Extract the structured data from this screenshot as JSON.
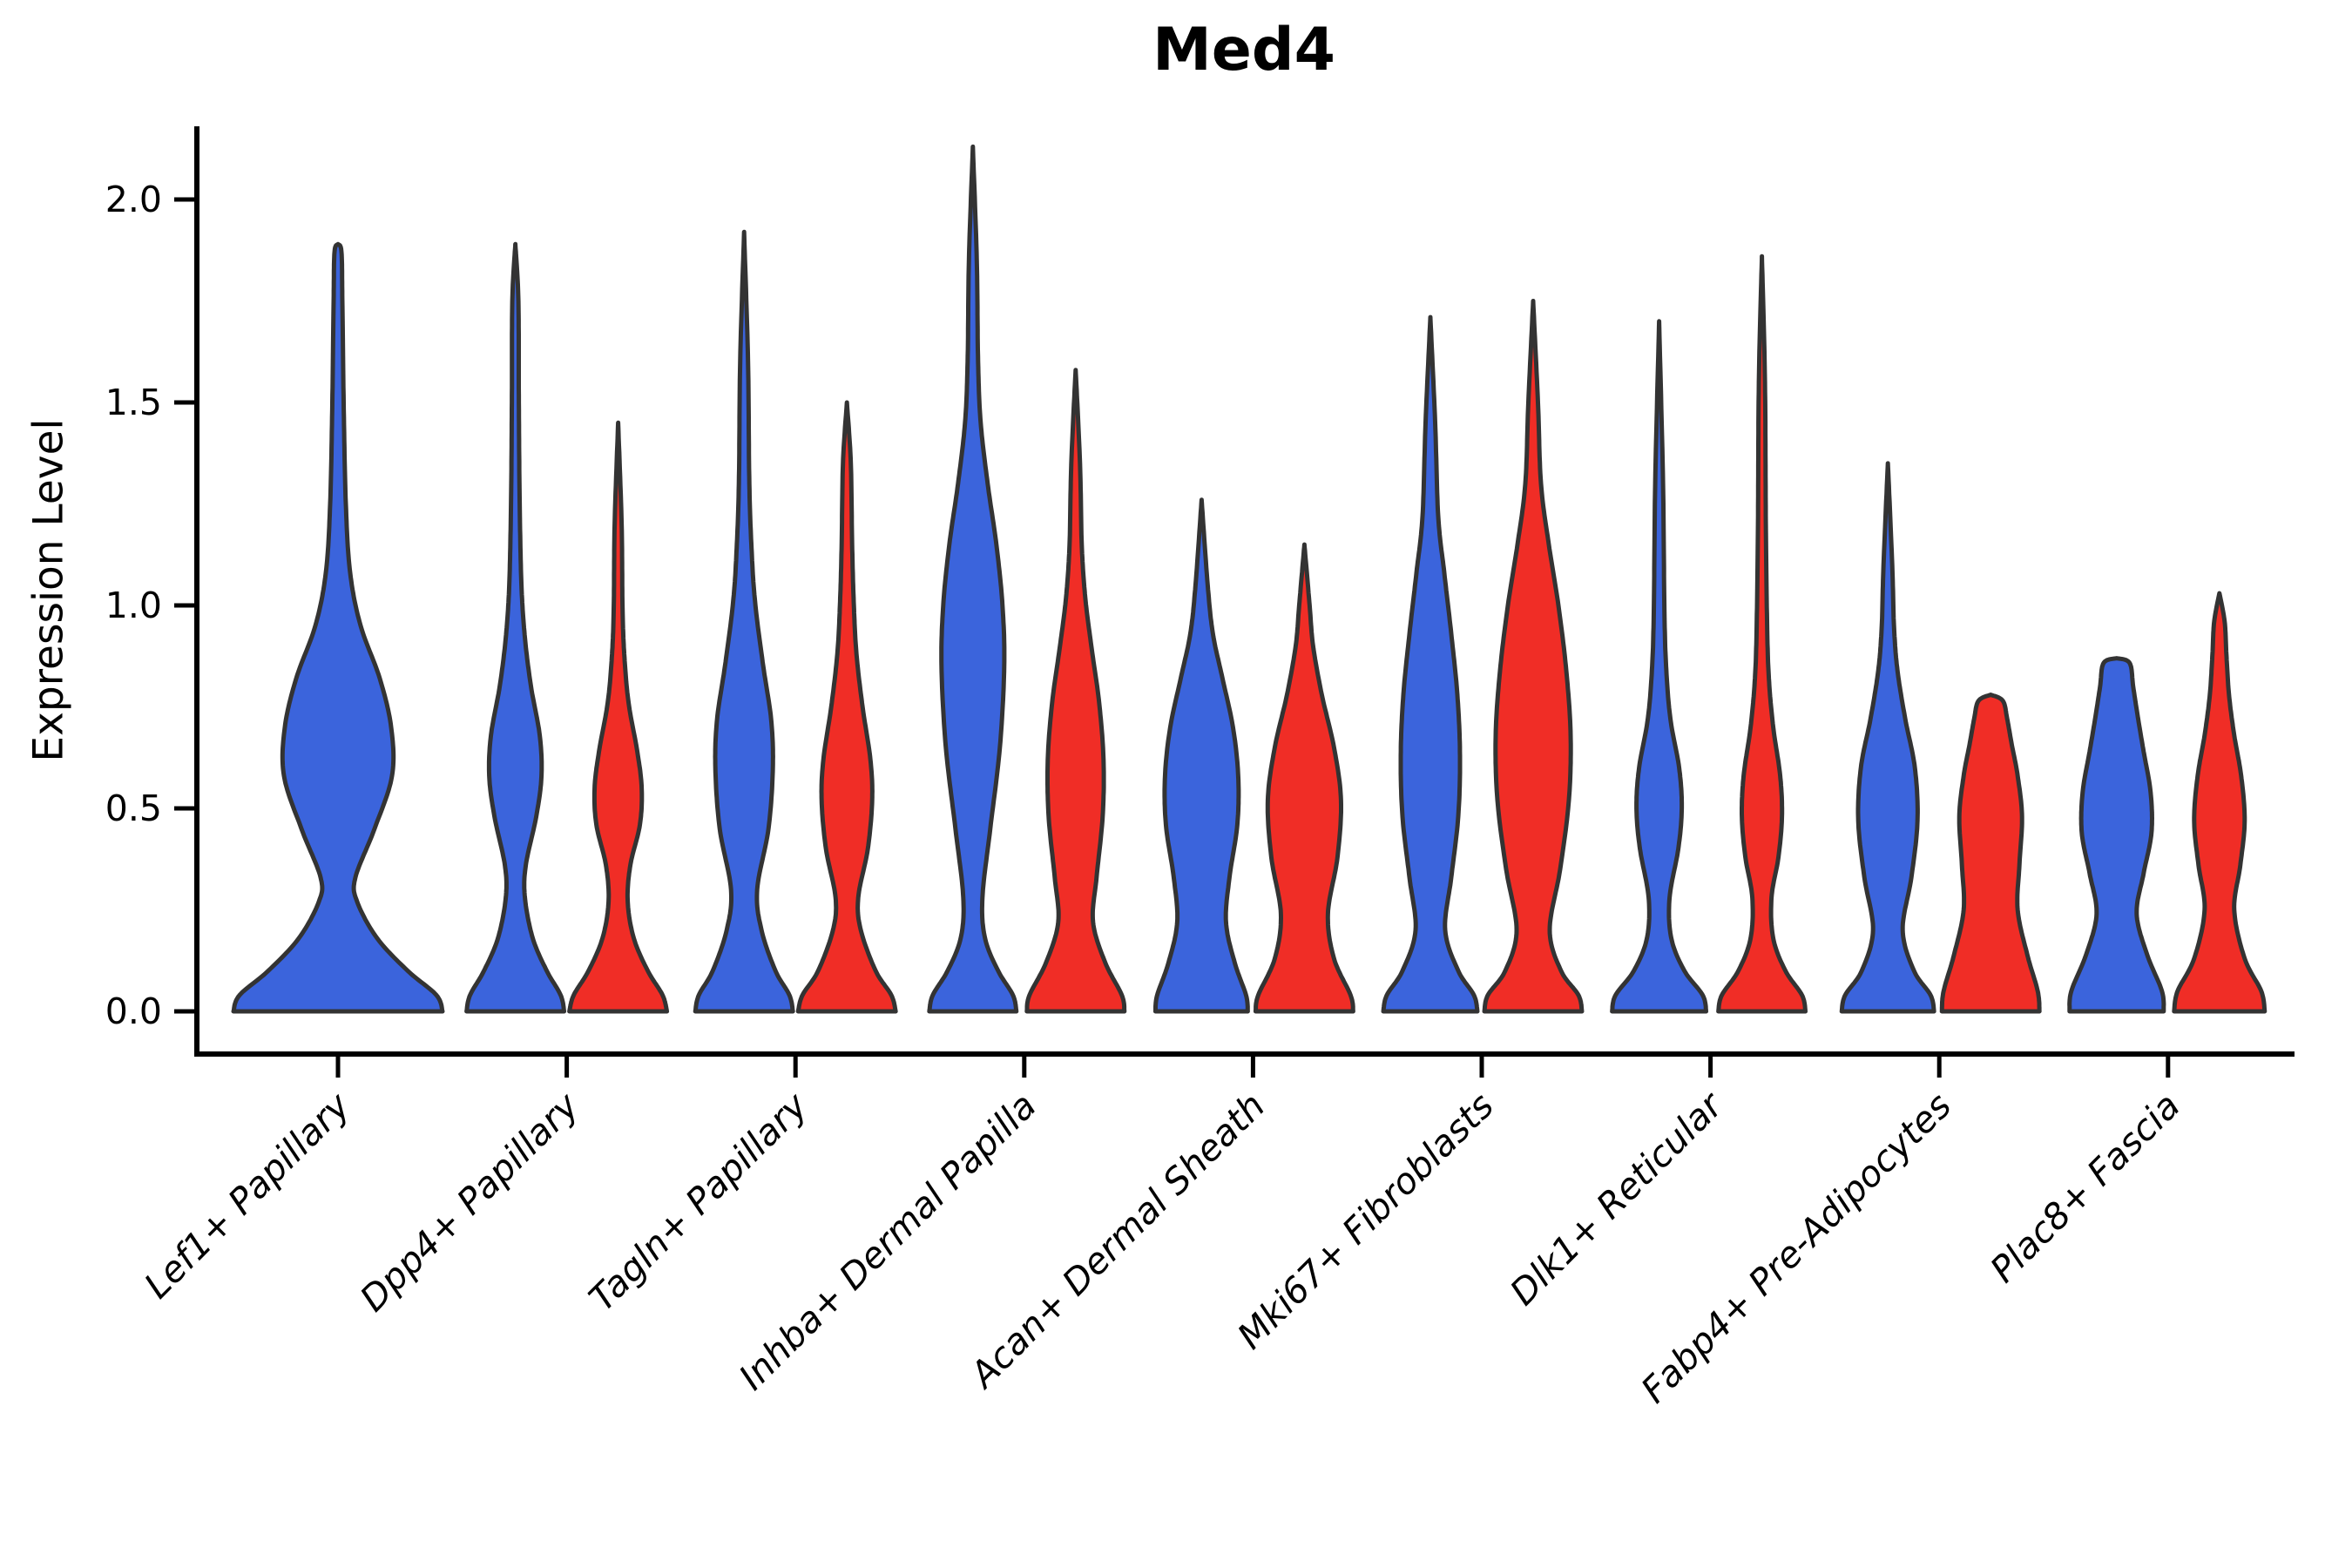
{
  "title": "Med4",
  "axes": {
    "ylabel": "Expression Level",
    "ytick_labels": [
      "0.0",
      "0.5",
      "1.0",
      "1.5",
      "2.0"
    ]
  },
  "colors": {
    "blue_fill": "#3B64DC",
    "red_fill": "#F02D26",
    "violin_outline": "#333333",
    "axis": "#000000",
    "background": "#FFFFFF"
  },
  "chart_data": {
    "type": "violin",
    "title": "Med4",
    "ylabel": "Expression Level",
    "xlabel": "",
    "ylim": [
      0,
      2.25
    ],
    "yticks": [
      0.0,
      0.5,
      1.0,
      1.5,
      2.0
    ],
    "grid": false,
    "legend": "none",
    "orientation": "vertical",
    "hue_colors": {
      "blue": "#3B64DC",
      "red": "#F02D26"
    },
    "categories": [
      "Lef1+ Papillary",
      "Dpp4+ Papillary",
      "Tagln+ Papillary",
      "Inhba+ Dermal Papilla",
      "Acan+ Dermal Sheath",
      "Mki67+ Fibroblasts",
      "Dlk1+ Reticular",
      "Fabp4+ Pre-Adipocytes",
      "Plac8+ Fascia"
    ],
    "series": [
      {
        "name": "blue",
        "color": "#3B64DC",
        "max_expression": [
          1.89,
          1.89,
          1.92,
          2.13,
          1.26,
          1.71,
          1.7,
          1.35,
          0.87
        ]
      },
      {
        "name": "red",
        "color": "#F02D26",
        "max_expression": [
          null,
          1.45,
          1.5,
          1.58,
          1.15,
          1.75,
          1.86,
          0.78,
          1.03
        ]
      }
    ],
    "violins": [
      {
        "category": "Lef1+ Papillary",
        "blue": {
          "max": 1.89,
          "profile": [
            [
              0,
              120
            ],
            [
              0.04,
              113
            ],
            [
              0.1,
              80
            ],
            [
              0.18,
              45
            ],
            [
              0.27,
              22
            ],
            [
              0.33,
              20
            ],
            [
              0.45,
              42
            ],
            [
              0.58,
              62
            ],
            [
              0.7,
              61
            ],
            [
              0.82,
              48
            ],
            [
              0.95,
              26
            ],
            [
              1.08,
              14
            ],
            [
              1.25,
              9
            ],
            [
              1.5,
              6.5
            ],
            [
              1.75,
              5
            ],
            [
              1.87,
              4
            ],
            [
              1.89,
              0
            ]
          ]
        },
        "red": null
      },
      {
        "category": "Dpp4+ Papillary",
        "blue": {
          "max": 1.89,
          "profile": [
            [
              0,
              56
            ],
            [
              0.04,
              52
            ],
            [
              0.1,
              36
            ],
            [
              0.18,
              20
            ],
            [
              0.28,
              11
            ],
            [
              0.36,
              12
            ],
            [
              0.48,
              24
            ],
            [
              0.58,
              30
            ],
            [
              0.68,
              28
            ],
            [
              0.8,
              18
            ],
            [
              0.92,
              11
            ],
            [
              1.05,
              7
            ],
            [
              1.25,
              5
            ],
            [
              1.5,
              4
            ],
            [
              1.75,
              3.5
            ],
            [
              1.89,
              0
            ]
          ]
        },
        "red": {
          "max": 1.45,
          "profile": [
            [
              0,
              56
            ],
            [
              0.04,
              51
            ],
            [
              0.1,
              34
            ],
            [
              0.18,
              18
            ],
            [
              0.27,
              11
            ],
            [
              0.36,
              14
            ],
            [
              0.46,
              25
            ],
            [
              0.55,
              27
            ],
            [
              0.64,
              22
            ],
            [
              0.76,
              12
            ],
            [
              0.88,
              7
            ],
            [
              1.0,
              5
            ],
            [
              1.2,
              4
            ],
            [
              1.45,
              0
            ]
          ]
        }
      },
      {
        "category": "Tagln+ Papillary",
        "blue": {
          "max": 1.92,
          "profile": [
            [
              0,
              56
            ],
            [
              0.04,
              52
            ],
            [
              0.1,
              36
            ],
            [
              0.2,
              20
            ],
            [
              0.3,
              15
            ],
            [
              0.45,
              28
            ],
            [
              0.6,
              33
            ],
            [
              0.72,
              31
            ],
            [
              0.85,
              22
            ],
            [
              1.0,
              13
            ],
            [
              1.12,
              9
            ],
            [
              1.3,
              6
            ],
            [
              1.6,
              4.5
            ],
            [
              1.92,
              0
            ]
          ]
        },
        "red": {
          "max": 1.5,
          "profile": [
            [
              0,
              56
            ],
            [
              0.04,
              51
            ],
            [
              0.1,
              33
            ],
            [
              0.2,
              16
            ],
            [
              0.28,
              13
            ],
            [
              0.4,
              24
            ],
            [
              0.52,
              29
            ],
            [
              0.62,
              27
            ],
            [
              0.75,
              18
            ],
            [
              0.88,
              11
            ],
            [
              1.0,
              8
            ],
            [
              1.15,
              6
            ],
            [
              1.35,
              4.5
            ],
            [
              1.5,
              0
            ]
          ]
        }
      },
      {
        "category": "Inhba+ Dermal Papilla",
        "blue": {
          "max": 2.13,
          "profile": [
            [
              0,
              50
            ],
            [
              0.04,
              46
            ],
            [
              0.1,
              29
            ],
            [
              0.18,
              14
            ],
            [
              0.28,
              11
            ],
            [
              0.45,
              20
            ],
            [
              0.65,
              31
            ],
            [
              0.85,
              36
            ],
            [
              1.0,
              34
            ],
            [
              1.15,
              27
            ],
            [
              1.3,
              17
            ],
            [
              1.45,
              9
            ],
            [
              1.6,
              6
            ],
            [
              1.85,
              4.5
            ],
            [
              2.13,
              0
            ]
          ]
        },
        "red": {
          "max": 1.58,
          "profile": [
            [
              0,
              56
            ],
            [
              0.04,
              53
            ],
            [
              0.12,
              34
            ],
            [
              0.22,
              20
            ],
            [
              0.33,
              24
            ],
            [
              0.48,
              31
            ],
            [
              0.62,
              32
            ],
            [
              0.76,
              27
            ],
            [
              0.9,
              18
            ],
            [
              1.02,
              11
            ],
            [
              1.15,
              7
            ],
            [
              1.35,
              5
            ],
            [
              1.58,
              0
            ]
          ]
        }
      },
      {
        "category": "Acan+ Dermal Sheath",
        "blue": {
          "max": 1.26,
          "profile": [
            [
              0,
              53
            ],
            [
              0.04,
              51
            ],
            [
              0.12,
              38
            ],
            [
              0.22,
              28
            ],
            [
              0.33,
              32
            ],
            [
              0.46,
              41
            ],
            [
              0.58,
              42
            ],
            [
              0.7,
              36
            ],
            [
              0.82,
              24
            ],
            [
              0.93,
              13
            ],
            [
              1.05,
              7
            ],
            [
              1.26,
              0
            ]
          ]
        },
        "red": {
          "max": 1.15,
          "profile": [
            [
              0,
              56
            ],
            [
              0.04,
              53
            ],
            [
              0.13,
              34
            ],
            [
              0.24,
              27
            ],
            [
              0.38,
              38
            ],
            [
              0.52,
              42
            ],
            [
              0.65,
              34
            ],
            [
              0.78,
              20
            ],
            [
              0.9,
              10
            ],
            [
              1.0,
              6
            ],
            [
              1.15,
              0
            ]
          ]
        }
      },
      {
        "category": "Mki67+ Fibroblasts",
        "blue": {
          "max": 1.71,
          "profile": [
            [
              0,
              54
            ],
            [
              0.04,
              50
            ],
            [
              0.1,
              32
            ],
            [
              0.2,
              17
            ],
            [
              0.33,
              24
            ],
            [
              0.48,
              32
            ],
            [
              0.63,
              34
            ],
            [
              0.78,
              31
            ],
            [
              0.93,
              24
            ],
            [
              1.08,
              16
            ],
            [
              1.22,
              9
            ],
            [
              1.45,
              5.5
            ],
            [
              1.71,
              0
            ]
          ]
        },
        "red": {
          "max": 1.75,
          "profile": [
            [
              0,
              56
            ],
            [
              0.04,
              52
            ],
            [
              0.1,
              32
            ],
            [
              0.2,
              19
            ],
            [
              0.35,
              31
            ],
            [
              0.52,
              41
            ],
            [
              0.68,
              43
            ],
            [
              0.84,
              38
            ],
            [
              1.0,
              29
            ],
            [
              1.15,
              18
            ],
            [
              1.3,
              9
            ],
            [
              1.5,
              5.5
            ],
            [
              1.75,
              0
            ]
          ]
        }
      },
      {
        "category": "Dlk1+ Reticular",
        "blue": {
          "max": 1.7,
          "profile": [
            [
              0,
              54
            ],
            [
              0.04,
              50
            ],
            [
              0.1,
              29
            ],
            [
              0.18,
              14
            ],
            [
              0.28,
              12
            ],
            [
              0.4,
              22
            ],
            [
              0.5,
              26
            ],
            [
              0.6,
              23
            ],
            [
              0.72,
              13
            ],
            [
              0.85,
              8
            ],
            [
              1.0,
              6
            ],
            [
              1.3,
              4.5
            ],
            [
              1.7,
              0
            ]
          ]
        },
        "red": {
          "max": 1.86,
          "profile": [
            [
              0,
              50
            ],
            [
              0.04,
              46
            ],
            [
              0.1,
              27
            ],
            [
              0.18,
              13
            ],
            [
              0.28,
              11
            ],
            [
              0.38,
              19
            ],
            [
              0.48,
              23
            ],
            [
              0.58,
              21
            ],
            [
              0.7,
              13
            ],
            [
              0.82,
              8
            ],
            [
              0.95,
              6
            ],
            [
              1.2,
              4.5
            ],
            [
              1.55,
              3.5
            ],
            [
              1.86,
              0
            ]
          ]
        }
      },
      {
        "category": "Fabp4+ Pre-Adipocytes",
        "blue": {
          "max": 1.35,
          "profile": [
            [
              0,
              53
            ],
            [
              0.04,
              49
            ],
            [
              0.1,
              30
            ],
            [
              0.2,
              17
            ],
            [
              0.33,
              27
            ],
            [
              0.47,
              34
            ],
            [
              0.6,
              31
            ],
            [
              0.72,
              20
            ],
            [
              0.84,
              11
            ],
            [
              0.95,
              7
            ],
            [
              1.1,
              5
            ],
            [
              1.35,
              0
            ]
          ]
        },
        "red": {
          "max": 0.78,
          "profile": [
            [
              0,
              56
            ],
            [
              0.05,
              54
            ],
            [
              0.14,
              42
            ],
            [
              0.25,
              31
            ],
            [
              0.36,
              33
            ],
            [
              0.48,
              36
            ],
            [
              0.58,
              31
            ],
            [
              0.66,
              24
            ],
            [
              0.72,
              19
            ],
            [
              0.765,
              14
            ],
            [
              0.78,
              0
            ]
          ]
        }
      },
      {
        "category": "Plac8+ Fascia",
        "blue": {
          "max": 0.87,
          "profile": [
            [
              0,
              54
            ],
            [
              0.05,
              52
            ],
            [
              0.14,
              35
            ],
            [
              0.24,
              23
            ],
            [
              0.34,
              31
            ],
            [
              0.44,
              40
            ],
            [
              0.54,
              39
            ],
            [
              0.64,
              31
            ],
            [
              0.73,
              24
            ],
            [
              0.8,
              19
            ],
            [
              0.858,
              15
            ],
            [
              0.87,
              0
            ]
          ]
        },
        "red": {
          "max": 1.03,
          "profile": [
            [
              0,
              52
            ],
            [
              0.05,
              48
            ],
            [
              0.13,
              29
            ],
            [
              0.25,
              17
            ],
            [
              0.36,
              24
            ],
            [
              0.47,
              29
            ],
            [
              0.58,
              25
            ],
            [
              0.68,
              17
            ],
            [
              0.78,
              11
            ],
            [
              0.88,
              8
            ],
            [
              0.96,
              6
            ],
            [
              1.03,
              0
            ]
          ]
        }
      }
    ]
  }
}
